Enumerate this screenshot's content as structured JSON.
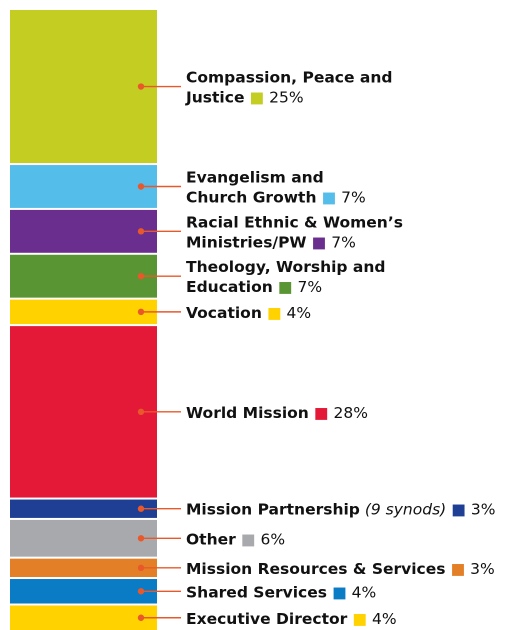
{
  "chart_data": {
    "type": "bar",
    "subtype": "stacked-100",
    "unit": "%",
    "series": [
      {
        "lines": [
          "Compassion, Peace and",
          "Justice"
        ],
        "note": "",
        "value": 25,
        "label": "25%",
        "color": "#c4cd22"
      },
      {
        "lines": [
          "Evangelism and",
          "Church Growth"
        ],
        "note": "",
        "value": 7,
        "label": "7%",
        "color": "#55bde9"
      },
      {
        "lines": [
          "Racial Ethnic & Women’s",
          "Ministries/PW"
        ],
        "note": "",
        "value": 7,
        "label": "7%",
        "color": "#6a2e8e"
      },
      {
        "lines": [
          "Theology, Worship and",
          "Education"
        ],
        "note": "",
        "value": 7,
        "label": "7%",
        "color": "#5a9533"
      },
      {
        "lines": [
          "Vocation"
        ],
        "note": "",
        "value": 4,
        "label": "4%",
        "color": "#ffd200"
      },
      {
        "lines": [
          "World Mission"
        ],
        "note": "",
        "value": 28,
        "label": "28%",
        "color": "#e31937"
      },
      {
        "lines": [
          "Mission Partnership"
        ],
        "note": "(9 synods)",
        "value": 3,
        "label": "3%",
        "color": "#1f3f95"
      },
      {
        "lines": [
          "Other"
        ],
        "note": "",
        "value": 6,
        "label": "6%",
        "color": "#a7a9ac"
      },
      {
        "lines": [
          "Mission Resources & Services"
        ],
        "note": "",
        "value": 3,
        "label": "3%",
        "color": "#e37f27"
      },
      {
        "lines": [
          "Shared Services"
        ],
        "note": "",
        "value": 4,
        "label": "4%",
        "color": "#0a7cc6"
      },
      {
        "lines": [
          "Executive Director"
        ],
        "note": "",
        "value": 4,
        "label": "4%",
        "color": "#ffd200"
      }
    ],
    "leader_color": "#e8582a"
  }
}
